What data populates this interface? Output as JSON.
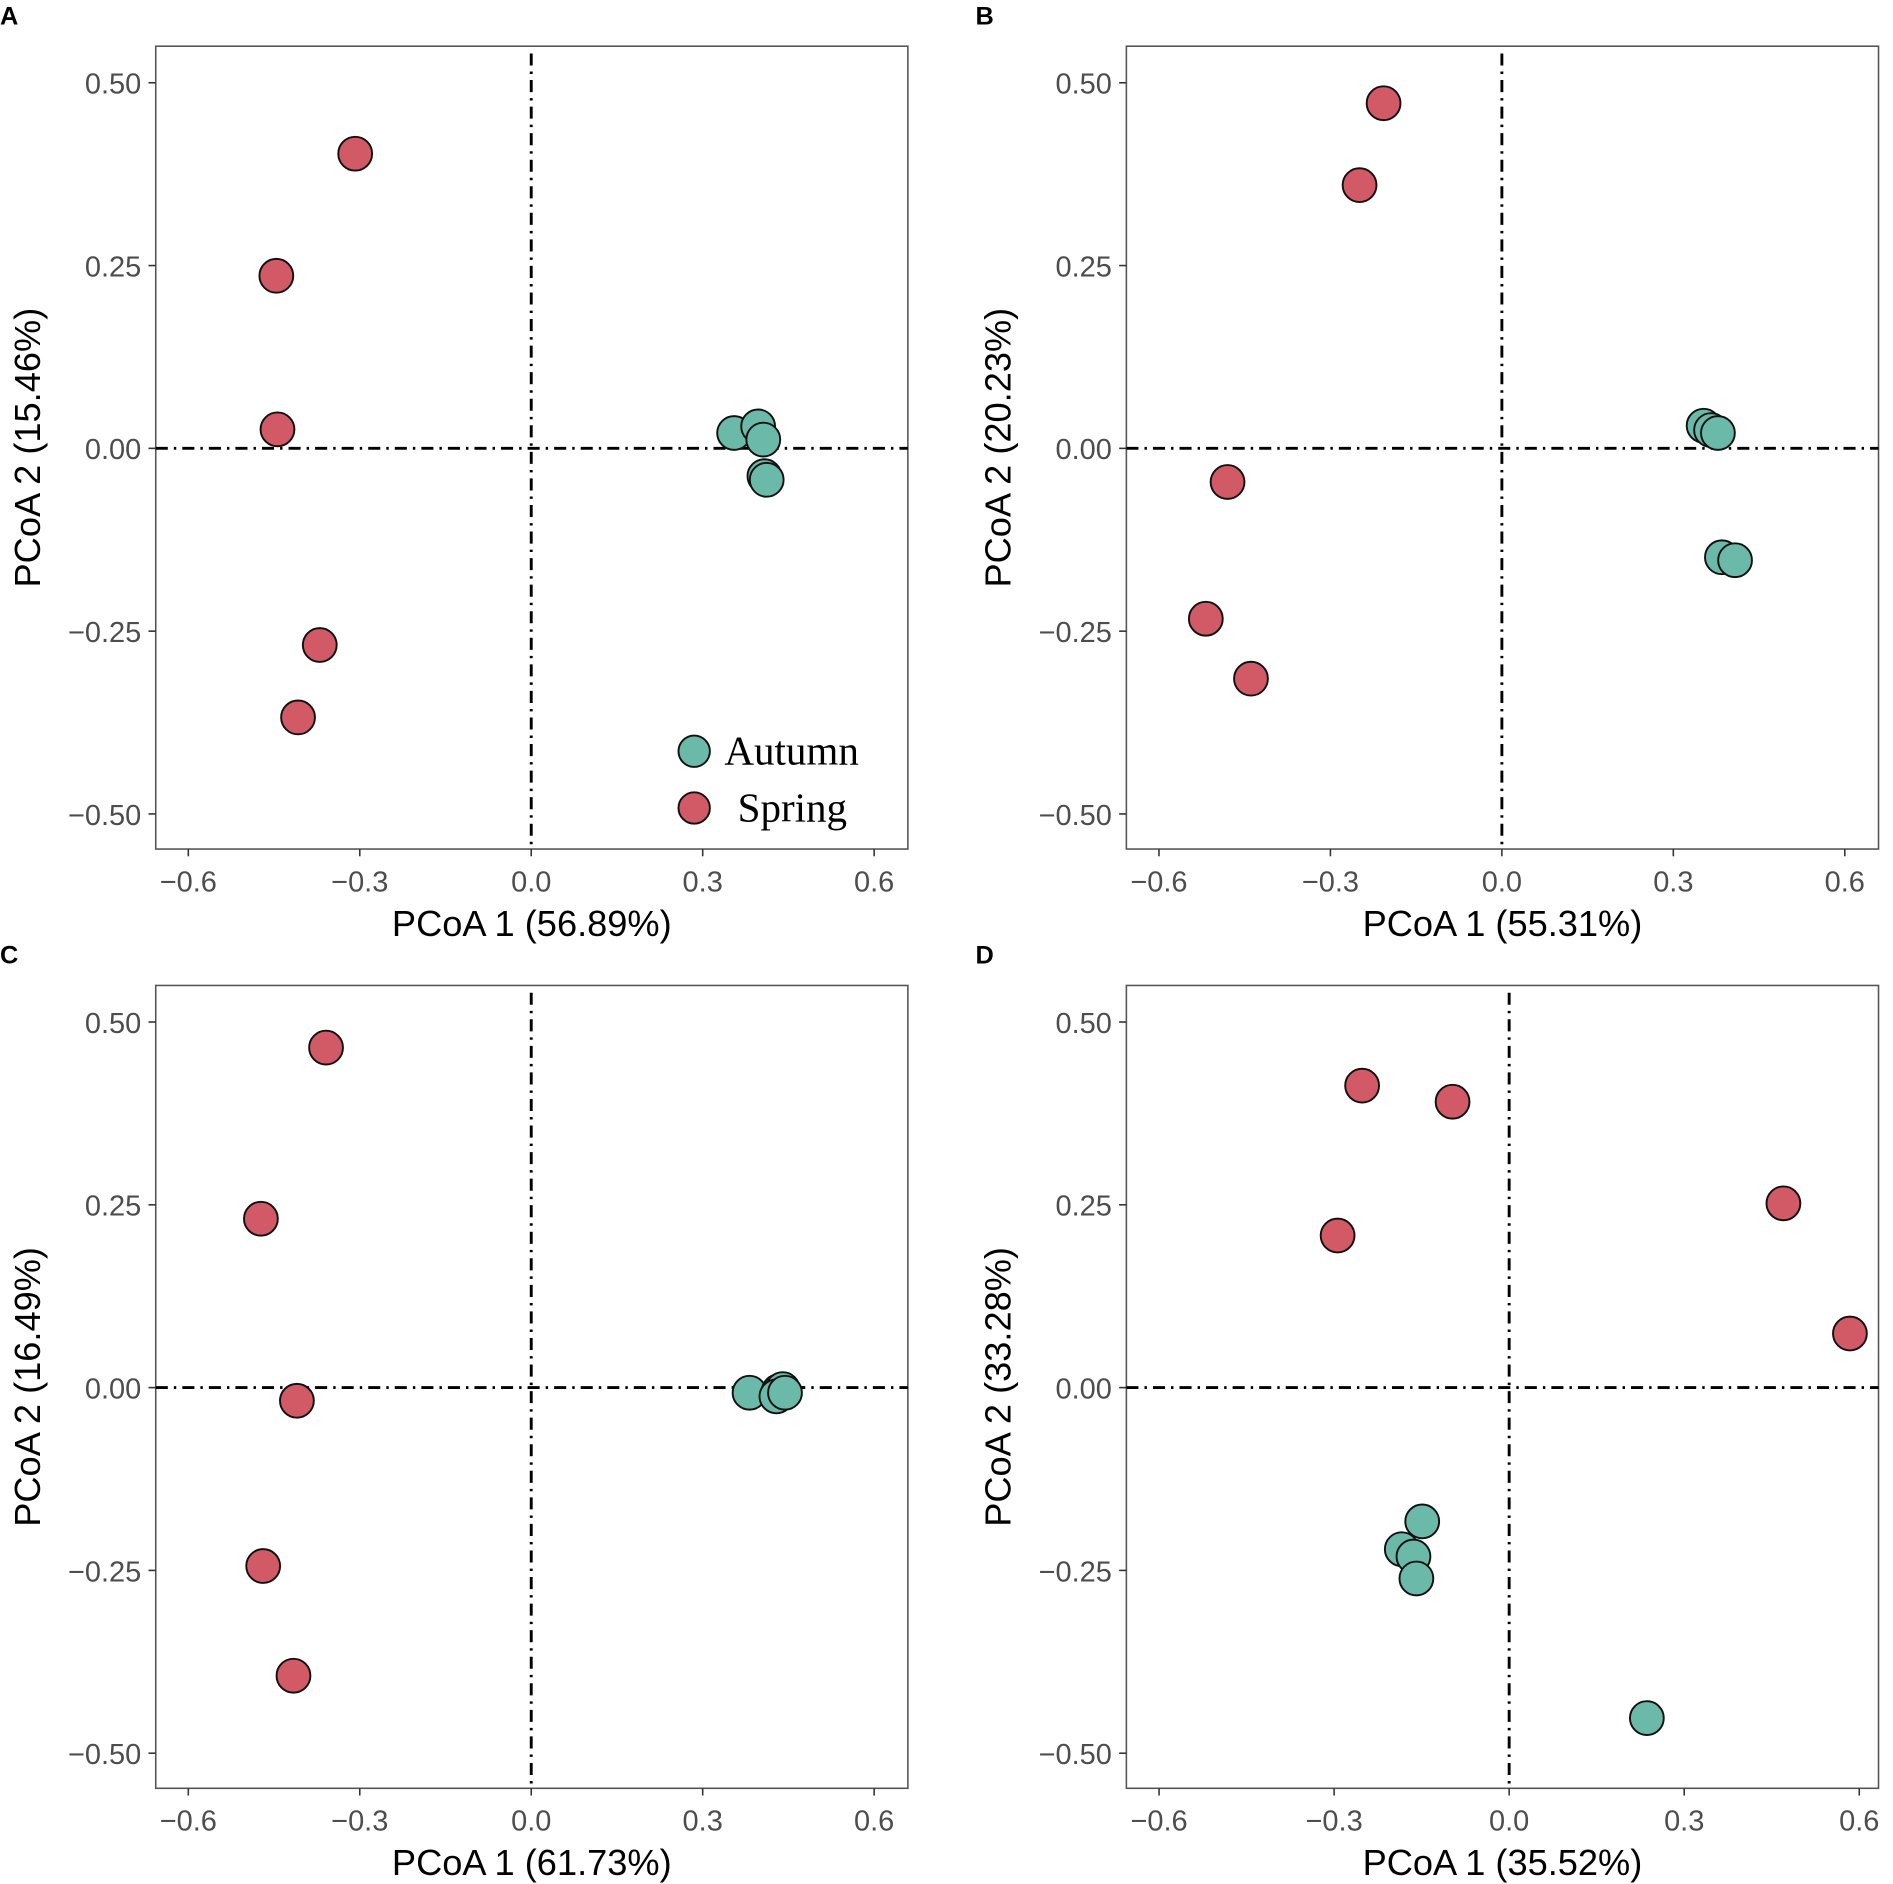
{
  "chart_data": [
    {
      "type": "scatter",
      "panel": "A",
      "xlabel": "PCoA 1 (56.89%)",
      "ylabel": "PCoA 2 (15.46%)",
      "xlim": [
        -0.657,
        0.659
      ],
      "ylim": [
        -0.548,
        0.55
      ],
      "xticks": [
        "-0.6",
        "-0.3",
        "0.0",
        "0.3",
        "0.6"
      ],
      "xtick_values": [
        -0.6,
        -0.3,
        0,
        0.3,
        0.6
      ],
      "yticks": [
        "-0.50",
        "-0.25",
        "0.00",
        "0.25",
        "0.50"
      ],
      "ytick_values": [
        -0.5,
        -0.25,
        0,
        0.25,
        0.5
      ],
      "legend": {
        "position": "bottom-right",
        "entries": [
          "Autumn",
          "Spring"
        ]
      },
      "series": [
        {
          "name": "Spring",
          "x": [
            -0.308,
            -0.446,
            -0.444,
            -0.37,
            -0.408
          ],
          "y": [
            0.403,
            0.236,
            0.026,
            -0.269,
            -0.368
          ]
        },
        {
          "name": "Autumn",
          "x": [
            0.355,
            0.397,
            0.406,
            0.408,
            0.412
          ],
          "y": [
            0.021,
            0.03,
            0.012,
            -0.038,
            -0.043
          ]
        }
      ]
    },
    {
      "type": "scatter",
      "panel": "B",
      "xlabel": "PCoA 1 (55.31%)",
      "ylabel": "PCoA 2 (20.23%)",
      "xlim": [
        -0.657,
        0.659
      ],
      "ylim": [
        -0.548,
        0.55
      ],
      "xticks": [
        "-0.6",
        "-0.3",
        "0.0",
        "0.3",
        "0.6"
      ],
      "xtick_values": [
        -0.6,
        -0.3,
        0,
        0.3,
        0.6
      ],
      "yticks": [
        "-0.50",
        "-0.25",
        "0.00",
        "0.25",
        "0.50"
      ],
      "ytick_values": [
        -0.5,
        -0.25,
        0,
        0.25,
        0.5
      ],
      "series": [
        {
          "name": "Spring",
          "x": [
            -0.207,
            -0.249,
            -0.48,
            -0.518,
            -0.439
          ],
          "y": [
            0.472,
            0.36,
            -0.046,
            -0.233,
            -0.315
          ]
        },
        {
          "name": "Autumn",
          "x": [
            0.353,
            0.366,
            0.378,
            0.385,
            0.408
          ],
          "y": [
            0.031,
            0.025,
            0.021,
            -0.149,
            -0.153
          ]
        }
      ]
    },
    {
      "type": "scatter",
      "panel": "C",
      "xlabel": "PCoA 1 (61.73%)",
      "ylabel": "PCoA 2 (16.49%)",
      "xlim": [
        -0.657,
        0.659
      ],
      "ylim": [
        -0.548,
        0.55
      ],
      "xticks": [
        "-0.6",
        "-0.3",
        "0.0",
        "0.3",
        "0.6"
      ],
      "xtick_values": [
        -0.6,
        -0.3,
        0,
        0.3,
        0.6
      ],
      "yticks": [
        "-0.50",
        "-0.25",
        "0.00",
        "0.25",
        "0.50"
      ],
      "ytick_values": [
        -0.5,
        -0.25,
        0,
        0.25,
        0.5
      ],
      "series": [
        {
          "name": "Spring",
          "x": [
            -0.359,
            -0.473,
            -0.41,
            -0.469,
            -0.416
          ],
          "y": [
            0.465,
            0.231,
            -0.018,
            -0.244,
            -0.394
          ]
        },
        {
          "name": "Autumn",
          "x": [
            0.382,
            0.433,
            0.44,
            0.429,
            0.444
          ],
          "y": [
            -0.007,
            -0.005,
            -0.002,
            -0.012,
            -0.007
          ]
        }
      ]
    },
    {
      "type": "scatter",
      "panel": "D",
      "xlabel": "PCoA 1 (35.52%)",
      "ylabel": "PCoA 2 (33.28%)",
      "xlim": [
        -0.656,
        0.633
      ],
      "ylim": [
        -0.548,
        0.55
      ],
      "xticks": [
        "-0.6",
        "-0.3",
        "0.0",
        "0.3",
        "0.6"
      ],
      "xtick_values": [
        -0.6,
        -0.3,
        0,
        0.3,
        0.6
      ],
      "yticks": [
        "-0.50",
        "-0.25",
        "0.00",
        "0.25",
        "0.50"
      ],
      "ytick_values": [
        -0.5,
        -0.25,
        0,
        0.25,
        0.5
      ],
      "series": [
        {
          "name": "Spring",
          "x": [
            -0.252,
            -0.097,
            -0.294,
            0.47,
            0.584
          ],
          "y": [
            0.413,
            0.391,
            0.208,
            0.252,
            0.074
          ]
        },
        {
          "name": "Autumn",
          "x": [
            -0.149,
            -0.184,
            -0.164,
            -0.159,
            0.236
          ],
          "y": [
            -0.183,
            -0.221,
            -0.231,
            -0.261,
            -0.452
          ]
        }
      ]
    }
  ],
  "colors": {
    "Autumn": "#6bbaa9",
    "Spring": "#d15a66"
  }
}
